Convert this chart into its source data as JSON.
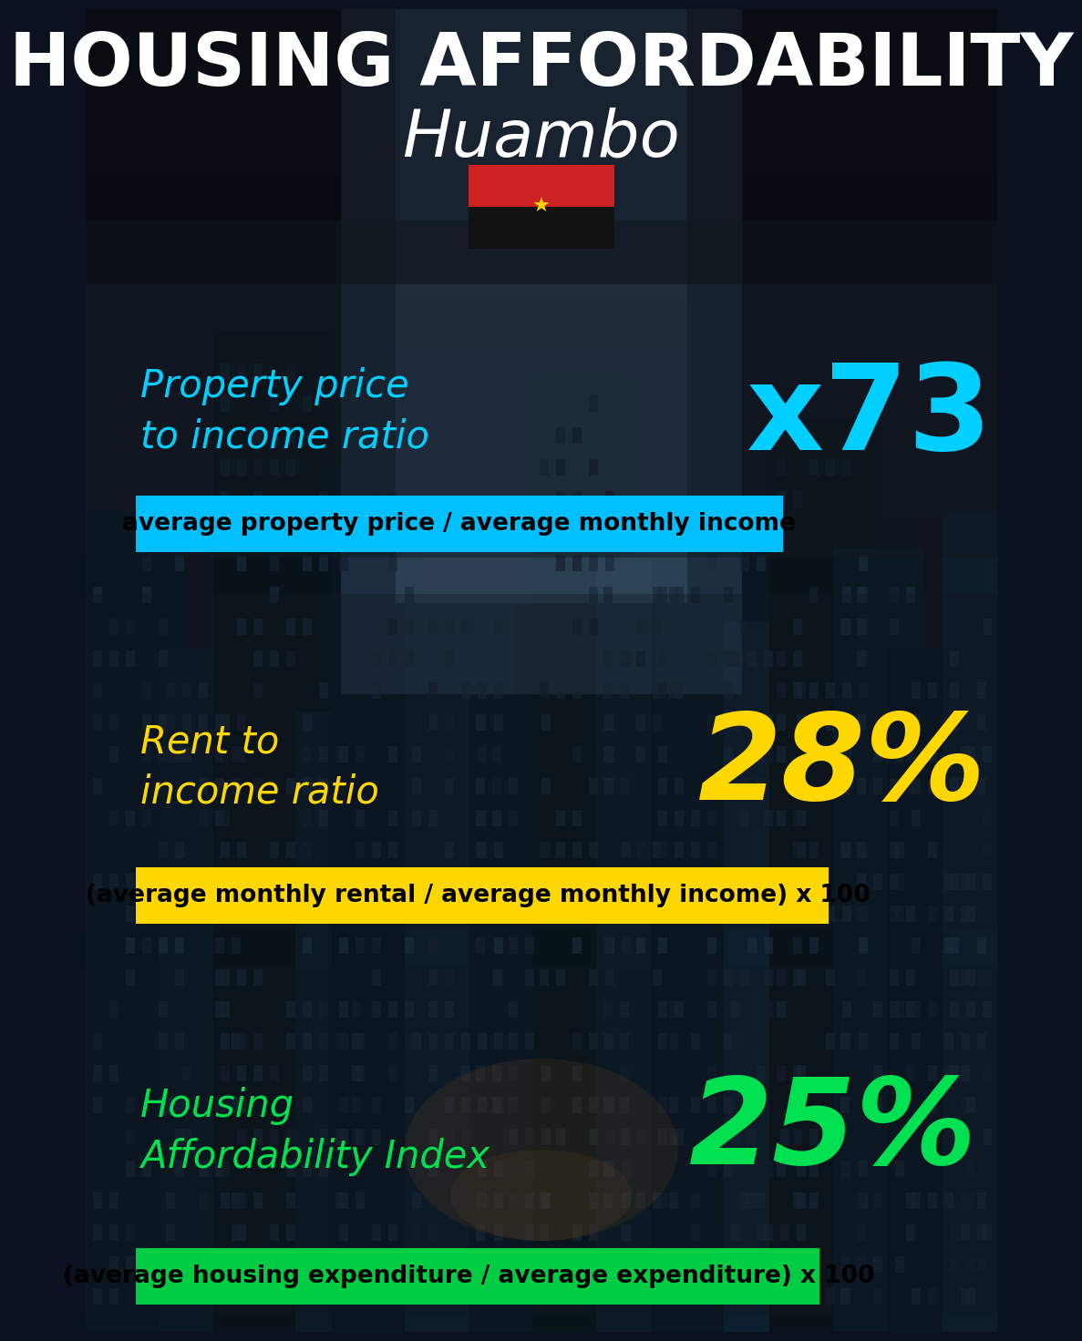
{
  "title_line1": "HOUSING AFFORDABILITY",
  "title_line2": "Huambo",
  "bg_color": "#0a1220",
  "section1_label": "Property price\nto income ratio",
  "section1_value": "x73",
  "section1_label_color": "#00cfff",
  "section1_value_color": "#00cfff",
  "section1_formula": "average property price / average monthly income",
  "section1_formula_bg": "#00bfff",
  "section1_formula_color": "#000000",
  "section2_label": "Rent to\nincome ratio",
  "section2_value": "28%",
  "section2_label_color": "#ffd700",
  "section2_value_color": "#ffd700",
  "section2_formula": "(average monthly rental / average monthly income) x 100",
  "section2_formula_bg": "#ffd700",
  "section2_formula_color": "#000000",
  "section3_label": "Housing\nAffordability Index",
  "section3_value": "25%",
  "section3_label_color": "#00e050",
  "section3_value_color": "#00e050",
  "section3_formula": "(average housing expenditure / average expenditure) x 100",
  "section3_formula_bg": "#00cc44",
  "section3_formula_color": "#000000",
  "flag_red": "#cc2222",
  "flag_black": "#111111",
  "flag_symbol_color": "#ffd700",
  "title_fontsize": 58,
  "subtitle_fontsize": 52,
  "label_fontsize": 30,
  "value_fontsize": 95,
  "formula_fontsize": 19
}
